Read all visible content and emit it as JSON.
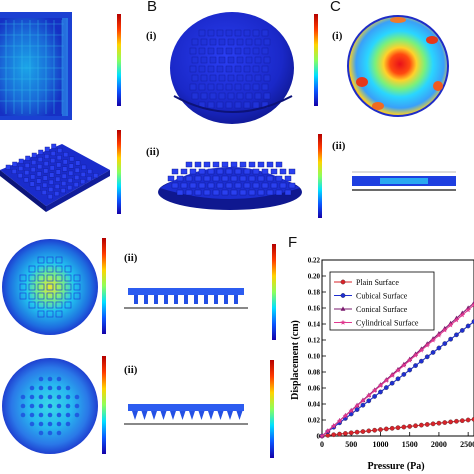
{
  "panels": {
    "B": "B",
    "C": "C",
    "F": "F",
    "sub_i": "(i)",
    "sub_ii": "(ii)"
  },
  "colors": {
    "deep_blue": "#1b2fd6",
    "navy": "#101a8c",
    "red": "#d8232a",
    "yellow": "#f5e23a"
  },
  "chart_data": {
    "type": "line",
    "xlabel": "Pressure (Pa)",
    "ylabel": "Displacement (cm)",
    "xlim": [
      0,
      2600
    ],
    "ylim": [
      0,
      0.22
    ],
    "xticks": [
      0,
      500,
      1000,
      1500,
      2000,
      2500
    ],
    "yticks": [
      0,
      0.02,
      0.04,
      0.06,
      0.08,
      0.1,
      0.12,
      0.14,
      0.16,
      0.18,
      0.2,
      0.22
    ],
    "ytick_labels": [
      "0",
      "0.02",
      "0.04",
      "0.06",
      "0.08",
      "0.10",
      "0.12",
      "0.14",
      "0.16",
      "0.18",
      "0.20",
      "0.22"
    ],
    "legend_position": "top-left",
    "series": [
      {
        "name": "Plain Surface",
        "color": "#d8232a",
        "marker": "circle",
        "x": [
          0,
          100,
          200,
          300,
          400,
          500,
          600,
          700,
          800,
          900,
          1000,
          1100,
          1200,
          1300,
          1400,
          1500,
          1600,
          1700,
          1800,
          1900,
          2000,
          2100,
          2200,
          2300,
          2400,
          2500,
          2600
        ],
        "y": [
          0,
          0.0008,
          0.0016,
          0.0024,
          0.0032,
          0.004,
          0.0048,
          0.0056,
          0.0064,
          0.0072,
          0.008,
          0.0088,
          0.0096,
          0.0104,
          0.0112,
          0.012,
          0.0128,
          0.0136,
          0.0144,
          0.0152,
          0.016,
          0.0168,
          0.0176,
          0.0184,
          0.0192,
          0.02,
          0.0208
        ]
      },
      {
        "name": "Cubical Surface",
        "color": "#1f2fd0",
        "marker": "circle",
        "x": [
          0,
          100,
          200,
          300,
          400,
          500,
          600,
          700,
          800,
          900,
          1000,
          1100,
          1200,
          1300,
          1400,
          1500,
          1600,
          1700,
          1800,
          1900,
          2000,
          2100,
          2200,
          2300,
          2400,
          2500,
          2600
        ],
        "y": [
          0,
          0.0055,
          0.011,
          0.0165,
          0.022,
          0.0275,
          0.033,
          0.0385,
          0.044,
          0.0495,
          0.055,
          0.0605,
          0.066,
          0.0715,
          0.077,
          0.0825,
          0.088,
          0.0935,
          0.099,
          0.1045,
          0.11,
          0.1155,
          0.121,
          0.1265,
          0.132,
          0.1375,
          0.143
        ]
      },
      {
        "name": "Conical Surface",
        "color": "#7a1a6e",
        "marker": "triangle",
        "x": [
          0,
          100,
          200,
          300,
          400,
          500,
          600,
          700,
          800,
          900,
          1000,
          1100,
          1200,
          1300,
          1400,
          1500,
          1600,
          1700,
          1800,
          1900,
          2000,
          2100,
          2200,
          2300,
          2400,
          2500,
          2600
        ],
        "y": [
          0,
          0.0064,
          0.0128,
          0.0192,
          0.0256,
          0.032,
          0.0384,
          0.0448,
          0.0512,
          0.0576,
          0.064,
          0.0704,
          0.0768,
          0.0832,
          0.0896,
          0.096,
          0.1024,
          0.1088,
          0.1152,
          0.1216,
          0.128,
          0.1344,
          0.1408,
          0.1472,
          0.1536,
          0.16,
          0.1664
        ]
      },
      {
        "name": "Cylindrical Surface",
        "color": "#e0388f",
        "marker": "star",
        "x": [
          0,
          100,
          200,
          300,
          400,
          500,
          600,
          700,
          800,
          900,
          1000,
          1100,
          1200,
          1300,
          1400,
          1500,
          1600,
          1700,
          1800,
          1900,
          2000,
          2100,
          2200,
          2300,
          2400,
          2500,
          2600
        ],
        "y": [
          0,
          0.0063,
          0.0126,
          0.0189,
          0.0252,
          0.0315,
          0.0378,
          0.0441,
          0.0504,
          0.0567,
          0.063,
          0.0693,
          0.0756,
          0.0819,
          0.0882,
          0.0945,
          0.1008,
          0.1071,
          0.1134,
          0.1197,
          0.126,
          0.1323,
          0.1386,
          0.1449,
          0.1512,
          0.1575,
          0.1638
        ]
      }
    ]
  }
}
